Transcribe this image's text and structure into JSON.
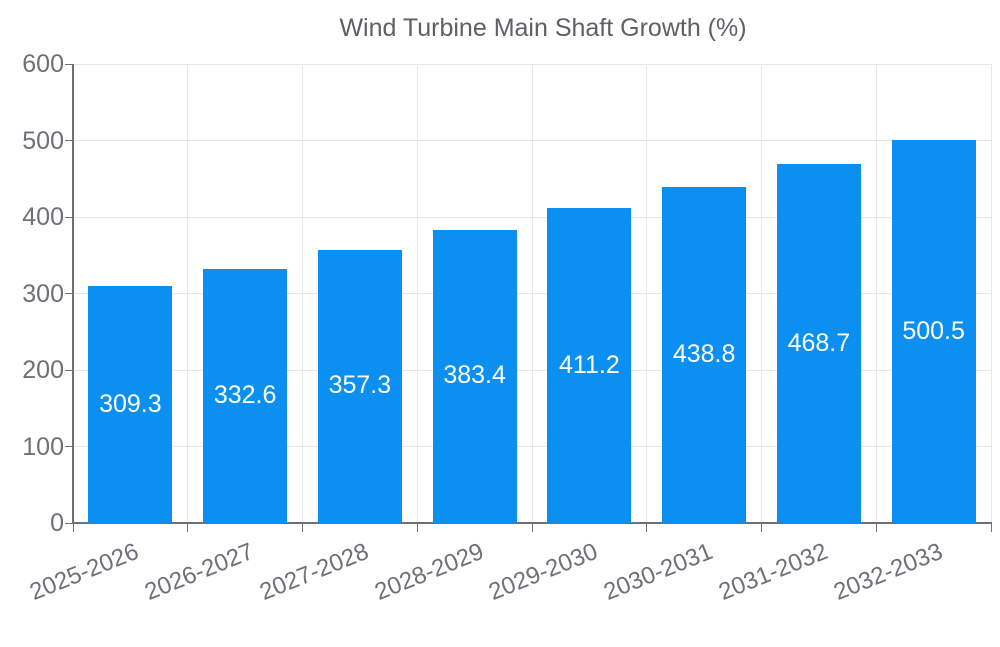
{
  "legend": {
    "label": "Wind Turbine Main Shaft Growth (%)"
  },
  "chart_data": {
    "type": "bar",
    "title": "Wind Turbine Main Shaft Growth (%)",
    "series_name": "Wind Turbine Main Shaft Growth (%)",
    "categories": [
      "2025-2026",
      "2026-2027",
      "2027-2028",
      "2028-2029",
      "2029-2030",
      "2030-2031",
      "2031-2032",
      "2032-2033"
    ],
    "values": [
      309.3,
      332.6,
      357.3,
      383.4,
      411.2,
      438.8,
      468.7,
      500.5
    ],
    "value_labels": [
      "309.3",
      "332.6",
      "357.3",
      "383.4",
      "411.2",
      "438.8",
      "468.7",
      "500.5"
    ],
    "xlabel": "",
    "ylabel": "",
    "ylim": [
      0,
      600
    ],
    "yticks": [
      0,
      100,
      200,
      300,
      400,
      500,
      600
    ],
    "grid": true,
    "legend_position": "top-center",
    "bar_color": "#0b90f2",
    "value_label_color": "#ffffff",
    "axis_color": "#6E7079",
    "gridline_color": "#e6e6e6"
  }
}
